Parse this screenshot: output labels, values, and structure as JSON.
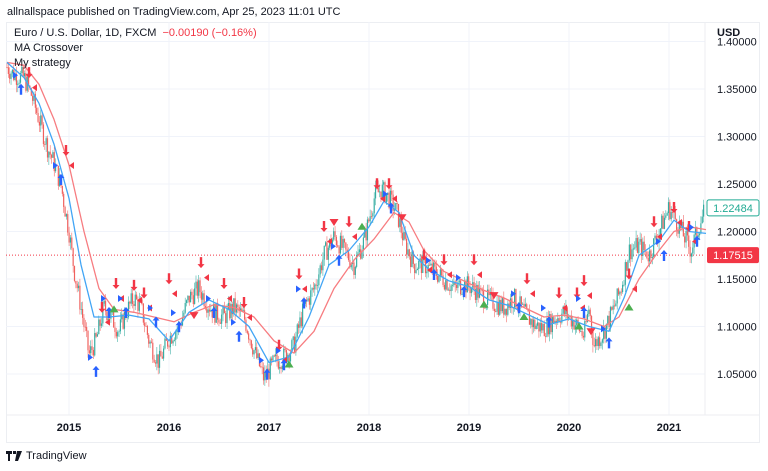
{
  "header": {
    "published": "allnallspace published on TradingView.com, Apr 25, 2023 11:01 UTC"
  },
  "legend": {
    "symbol": "Euro / U.S. Dollar, 1D, FXCM",
    "change": "−0.00190 (−0.16%)",
    "indicator_1": "MA Crossover",
    "indicator_2": "My strategy"
  },
  "price_axis": {
    "currency": "USD"
  },
  "footer": {
    "brand": "TradingView"
  },
  "colors": {
    "up": "#26a69a",
    "down": "#ef5350",
    "fast_ma": "#42a5f5",
    "slow_ma": "#f77c80",
    "buy_arrow": "#2962ff",
    "sell_arrow": "#f23645",
    "green_marker": "#4caf50",
    "last_price_bg": "#ffffff",
    "last_price_border": "#22ab94",
    "ref_price_bg": "#f23645",
    "grid": "#f0f3fa",
    "axis_text": "#131722"
  },
  "chart_data": {
    "type": "candlestick",
    "title": "Euro / U.S. Dollar, 1D, FXCM",
    "xlabel": "",
    "ylabel": "USD",
    "ylim": [
      1.02,
      1.41
    ],
    "xlim": [
      2014.37,
      2021.37
    ],
    "grid": true,
    "x_ticks": [
      "2015",
      "2016",
      "2017",
      "2018",
      "2019",
      "2020",
      "2021"
    ],
    "y_ticks": [
      "1.40000",
      "1.35000",
      "1.30000",
      "1.25000",
      "1.20000",
      "1.15000",
      "1.10000",
      "1.05000"
    ],
    "last_price_label": "1.22484",
    "ref_price_label": "1.17515",
    "last_price": 1.22484,
    "ref_price": 1.17515,
    "price_path": [
      [
        2014.38,
        1.373
      ],
      [
        2014.45,
        1.365
      ],
      [
        2014.55,
        1.362
      ],
      [
        2014.62,
        1.345
      ],
      [
        2014.7,
        1.318
      ],
      [
        2014.78,
        1.29
      ],
      [
        2014.85,
        1.272
      ],
      [
        2014.92,
        1.248
      ],
      [
        2015.0,
        1.2
      ],
      [
        2015.05,
        1.16
      ],
      [
        2015.12,
        1.12
      ],
      [
        2015.2,
        1.07
      ],
      [
        2015.27,
        1.085
      ],
      [
        2015.35,
        1.12
      ],
      [
        2015.42,
        1.11
      ],
      [
        2015.5,
        1.095
      ],
      [
        2015.57,
        1.115
      ],
      [
        2015.65,
        1.13
      ],
      [
        2015.72,
        1.12
      ],
      [
        2015.8,
        1.085
      ],
      [
        2015.9,
        1.062
      ],
      [
        2016.0,
        1.088
      ],
      [
        2016.1,
        1.1
      ],
      [
        2016.2,
        1.13
      ],
      [
        2016.3,
        1.14
      ],
      [
        2016.38,
        1.125
      ],
      [
        2016.45,
        1.115
      ],
      [
        2016.55,
        1.11
      ],
      [
        2016.65,
        1.12
      ],
      [
        2016.75,
        1.11
      ],
      [
        2016.85,
        1.075
      ],
      [
        2016.95,
        1.045
      ],
      [
        2017.05,
        1.062
      ],
      [
        2017.15,
        1.068
      ],
      [
        2017.25,
        1.08
      ],
      [
        2017.35,
        1.12
      ],
      [
        2017.45,
        1.14
      ],
      [
        2017.55,
        1.175
      ],
      [
        2017.65,
        1.195
      ],
      [
        2017.75,
        1.18
      ],
      [
        2017.85,
        1.165
      ],
      [
        2017.95,
        1.19
      ],
      [
        2018.05,
        1.235
      ],
      [
        2018.12,
        1.245
      ],
      [
        2018.2,
        1.235
      ],
      [
        2018.28,
        1.22
      ],
      [
        2018.35,
        1.19
      ],
      [
        2018.45,
        1.165
      ],
      [
        2018.55,
        1.165
      ],
      [
        2018.65,
        1.158
      ],
      [
        2018.75,
        1.15
      ],
      [
        2018.85,
        1.14
      ],
      [
        2018.95,
        1.145
      ],
      [
        2019.05,
        1.14
      ],
      [
        2019.15,
        1.13
      ],
      [
        2019.25,
        1.125
      ],
      [
        2019.35,
        1.12
      ],
      [
        2019.45,
        1.13
      ],
      [
        2019.55,
        1.115
      ],
      [
        2019.65,
        1.102
      ],
      [
        2019.75,
        1.098
      ],
      [
        2019.85,
        1.108
      ],
      [
        2019.95,
        1.115
      ],
      [
        2020.05,
        1.105
      ],
      [
        2020.15,
        1.09
      ],
      [
        2020.2,
        1.12
      ],
      [
        2020.25,
        1.08
      ],
      [
        2020.35,
        1.095
      ],
      [
        2020.45,
        1.12
      ],
      [
        2020.52,
        1.14
      ],
      [
        2020.6,
        1.18
      ],
      [
        2020.7,
        1.185
      ],
      [
        2020.8,
        1.175
      ],
      [
        2020.9,
        1.2
      ],
      [
        2021.0,
        1.225
      ],
      [
        2021.08,
        1.21
      ],
      [
        2021.15,
        1.195
      ],
      [
        2021.22,
        1.18
      ],
      [
        2021.28,
        1.2
      ],
      [
        2021.35,
        1.22
      ]
    ],
    "fast_ma_path": [
      [
        2014.38,
        1.378
      ],
      [
        2014.55,
        1.362
      ],
      [
        2014.7,
        1.335
      ],
      [
        2014.85,
        1.292
      ],
      [
        2015.0,
        1.235
      ],
      [
        2015.12,
        1.165
      ],
      [
        2015.25,
        1.11
      ],
      [
        2015.4,
        1.11
      ],
      [
        2015.6,
        1.112
      ],
      [
        2015.8,
        1.108
      ],
      [
        2016.0,
        1.085
      ],
      [
        2016.2,
        1.115
      ],
      [
        2016.4,
        1.128
      ],
      [
        2016.6,
        1.118
      ],
      [
        2016.8,
        1.1
      ],
      [
        2017.0,
        1.062
      ],
      [
        2017.2,
        1.068
      ],
      [
        2017.4,
        1.11
      ],
      [
        2017.6,
        1.165
      ],
      [
        2017.8,
        1.18
      ],
      [
        2018.0,
        1.205
      ],
      [
        2018.15,
        1.232
      ],
      [
        2018.3,
        1.22
      ],
      [
        2018.45,
        1.175
      ],
      [
        2018.6,
        1.16
      ],
      [
        2018.8,
        1.148
      ],
      [
        2019.0,
        1.142
      ],
      [
        2019.2,
        1.128
      ],
      [
        2019.4,
        1.122
      ],
      [
        2019.6,
        1.112
      ],
      [
        2019.8,
        1.102
      ],
      [
        2020.0,
        1.108
      ],
      [
        2020.2,
        1.1
      ],
      [
        2020.4,
        1.095
      ],
      [
        2020.55,
        1.13
      ],
      [
        2020.7,
        1.175
      ],
      [
        2020.9,
        1.19
      ],
      [
        2021.05,
        1.212
      ],
      [
        2021.2,
        1.2
      ],
      [
        2021.37,
        1.198
      ]
    ],
    "slow_ma_path": [
      [
        2014.38,
        1.378
      ],
      [
        2014.55,
        1.375
      ],
      [
        2014.7,
        1.355
      ],
      [
        2014.85,
        1.318
      ],
      [
        2015.0,
        1.27
      ],
      [
        2015.15,
        1.2
      ],
      [
        2015.3,
        1.14
      ],
      [
        2015.45,
        1.118
      ],
      [
        2015.65,
        1.115
      ],
      [
        2015.85,
        1.11
      ],
      [
        2016.05,
        1.105
      ],
      [
        2016.25,
        1.115
      ],
      [
        2016.45,
        1.123
      ],
      [
        2016.65,
        1.12
      ],
      [
        2016.85,
        1.11
      ],
      [
        2017.05,
        1.085
      ],
      [
        2017.25,
        1.072
      ],
      [
        2017.45,
        1.095
      ],
      [
        2017.65,
        1.14
      ],
      [
        2017.85,
        1.17
      ],
      [
        2018.05,
        1.192
      ],
      [
        2018.25,
        1.22
      ],
      [
        2018.4,
        1.21
      ],
      [
        2018.55,
        1.18
      ],
      [
        2018.75,
        1.158
      ],
      [
        2018.95,
        1.148
      ],
      [
        2019.15,
        1.138
      ],
      [
        2019.35,
        1.13
      ],
      [
        2019.55,
        1.12
      ],
      [
        2019.75,
        1.11
      ],
      [
        2019.95,
        1.112
      ],
      [
        2020.15,
        1.108
      ],
      [
        2020.35,
        1.1
      ],
      [
        2020.5,
        1.11
      ],
      [
        2020.7,
        1.15
      ],
      [
        2020.9,
        1.18
      ],
      [
        2021.05,
        1.2
      ],
      [
        2021.2,
        1.205
      ],
      [
        2021.37,
        1.202
      ]
    ],
    "signals": [
      {
        "type": "buy",
        "x": 2014.52,
        "y": 1.345
      },
      {
        "type": "sell",
        "x": 2014.6,
        "y": 1.372
      },
      {
        "type": "buy",
        "x": 2014.92,
        "y": 1.25
      },
      {
        "type": "sell",
        "x": 2014.97,
        "y": 1.29
      },
      {
        "type": "buy",
        "x": 2015.27,
        "y": 1.048
      },
      {
        "type": "sell",
        "x": 2015.33,
        "y": 1.125
      },
      {
        "type": "buy",
        "x": 2015.4,
        "y": 1.11
      },
      {
        "type": "sell",
        "x": 2015.47,
        "y": 1.15
      },
      {
        "type": "buy",
        "x": 2015.57,
        "y": 1.11
      },
      {
        "type": "sell",
        "x": 2015.65,
        "y": 1.148
      },
      {
        "type": "sell",
        "x": 2015.75,
        "y": 1.14
      },
      {
        "type": "buy",
        "x": 2015.87,
        "y": 1.1
      },
      {
        "type": "sell",
        "x": 2016.0,
        "y": 1.155
      },
      {
        "type": "buy",
        "x": 2016.1,
        "y": 1.095
      },
      {
        "type": "sell",
        "x": 2016.32,
        "y": 1.172
      },
      {
        "type": "buy",
        "x": 2016.45,
        "y": 1.11
      },
      {
        "type": "sell",
        "x": 2016.55,
        "y": 1.15
      },
      {
        "type": "buy",
        "x": 2016.7,
        "y": 1.085
      },
      {
        "type": "sell",
        "x": 2016.75,
        "y": 1.13
      },
      {
        "type": "buy",
        "x": 2016.98,
        "y": 1.045
      },
      {
        "type": "sell",
        "x": 2017.1,
        "y": 1.085
      },
      {
        "type": "buy",
        "x": 2017.15,
        "y": 1.055
      },
      {
        "type": "sell",
        "x": 2017.3,
        "y": 1.16
      },
      {
        "type": "buy",
        "x": 2017.35,
        "y": 1.12
      },
      {
        "type": "sell",
        "x": 2017.55,
        "y": 1.21
      },
      {
        "type": "buy",
        "x": 2017.7,
        "y": 1.165
      },
      {
        "type": "sell",
        "x": 2017.8,
        "y": 1.215
      },
      {
        "type": "sell",
        "x": 2018.08,
        "y": 1.255
      },
      {
        "type": "sell",
        "x": 2018.2,
        "y": 1.255
      },
      {
        "type": "buy",
        "x": 2018.22,
        "y": 1.22
      },
      {
        "type": "sell",
        "x": 2018.55,
        "y": 1.18
      },
      {
        "type": "buy",
        "x": 2018.65,
        "y": 1.15
      },
      {
        "type": "sell",
        "x": 2018.75,
        "y": 1.175
      },
      {
        "type": "buy",
        "x": 2018.95,
        "y": 1.132
      },
      {
        "type": "sell",
        "x": 2019.05,
        "y": 1.175
      },
      {
        "type": "buy",
        "x": 2019.5,
        "y": 1.115
      },
      {
        "type": "sell",
        "x": 2019.58,
        "y": 1.155
      },
      {
        "type": "buy",
        "x": 2019.8,
        "y": 1.1
      },
      {
        "type": "sell",
        "x": 2019.9,
        "y": 1.14
      },
      {
        "type": "sell",
        "x": 2020.08,
        "y": 1.14
      },
      {
        "type": "buy",
        "x": 2020.15,
        "y": 1.11
      },
      {
        "type": "sell",
        "x": 2020.15,
        "y": 1.153
      },
      {
        "type": "buy",
        "x": 2020.4,
        "y": 1.078
      },
      {
        "type": "sell",
        "x": 2020.6,
        "y": 1.16
      },
      {
        "type": "sell",
        "x": 2020.85,
        "y": 1.215
      },
      {
        "type": "buy",
        "x": 2020.95,
        "y": 1.17
      },
      {
        "type": "sell",
        "x": 2021.05,
        "y": 1.23
      },
      {
        "type": "sell",
        "x": 2021.2,
        "y": 1.21
      },
      {
        "type": "buy",
        "x": 2021.28,
        "y": 1.185
      }
    ],
    "triangles": [
      {
        "type": "green",
        "x": 2015.45,
        "y": 1.118
      },
      {
        "type": "red",
        "x": 2016.25,
        "y": 1.112
      },
      {
        "type": "green",
        "x": 2017.2,
        "y": 1.06
      },
      {
        "type": "red",
        "x": 2017.65,
        "y": 1.21
      },
      {
        "type": "green",
        "x": 2017.93,
        "y": 1.205
      },
      {
        "type": "red",
        "x": 2018.33,
        "y": 1.215
      },
      {
        "type": "green",
        "x": 2019.15,
        "y": 1.123
      },
      {
        "type": "green",
        "x": 2019.55,
        "y": 1.11
      },
      {
        "type": "red",
        "x": 2019.25,
        "y": 1.133
      },
      {
        "type": "green",
        "x": 2020.1,
        "y": 1.1
      },
      {
        "type": "red",
        "x": 2020.22,
        "y": 1.095
      },
      {
        "type": "green",
        "x": 2020.6,
        "y": 1.12
      }
    ]
  }
}
